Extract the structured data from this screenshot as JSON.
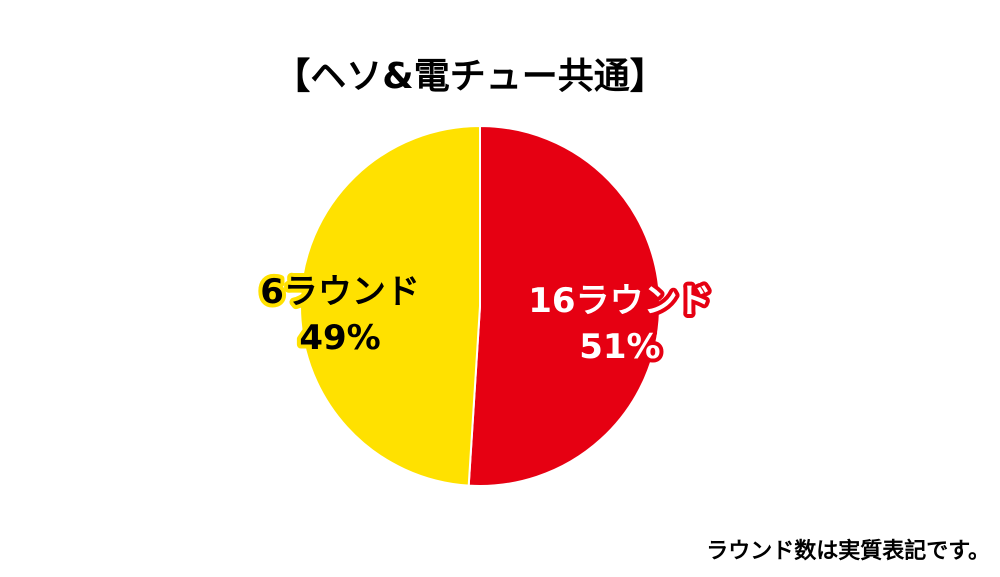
{
  "chart_data": {
    "type": "pie",
    "title": "【ヘソ&電チュー共通】",
    "categories": [
      "16ラウンド",
      "6ラウンド"
    ],
    "values": [
      51,
      49
    ],
    "value_labels": [
      "51%",
      "49%"
    ],
    "colors": [
      "#e60012",
      "#ffe100"
    ],
    "note": "ラウンド数は実質表記です。"
  }
}
